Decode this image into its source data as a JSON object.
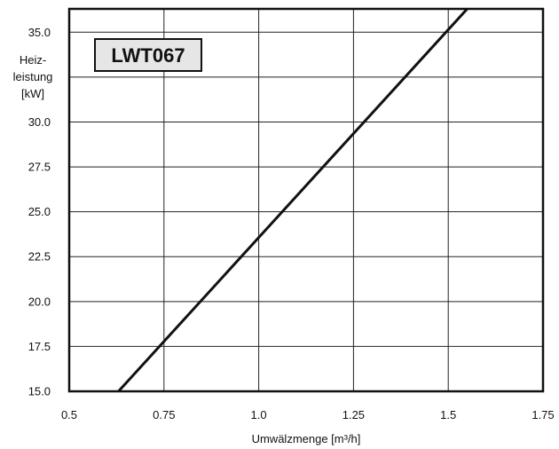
{
  "chart_data": {
    "type": "line",
    "title": "",
    "badge": "LWT067",
    "xlabel": "Umwälzmenge [m³/h]",
    "ylabel": [
      "Heiz-",
      "leistung",
      "[kW]"
    ],
    "xlim": [
      0.5,
      1.75
    ],
    "ylim": [
      15.0,
      36.3
    ],
    "x_ticks": [
      0.5,
      0.75,
      1.0,
      1.25,
      1.5,
      1.75
    ],
    "x_tick_labels": [
      "0.5",
      "0.75",
      "1.0",
      "1.25",
      "1.5",
      "1.75"
    ],
    "y_ticks": [
      15.0,
      17.5,
      20.0,
      22.5,
      25.0,
      27.5,
      30.0,
      32.5,
      35.0
    ],
    "y_tick_labels": [
      "15.0",
      "17.5",
      "20.0",
      "22.5",
      "25.0",
      "27.5",
      "30.0",
      "",
      "35.0"
    ],
    "grid": true,
    "series": [
      {
        "x": [
          0.63,
          1.55
        ],
        "y": [
          15.0,
          36.3
        ]
      }
    ],
    "colors": {
      "line": "#111111",
      "grid": "#222222",
      "badge_bg": "#e6e6e6"
    }
  }
}
